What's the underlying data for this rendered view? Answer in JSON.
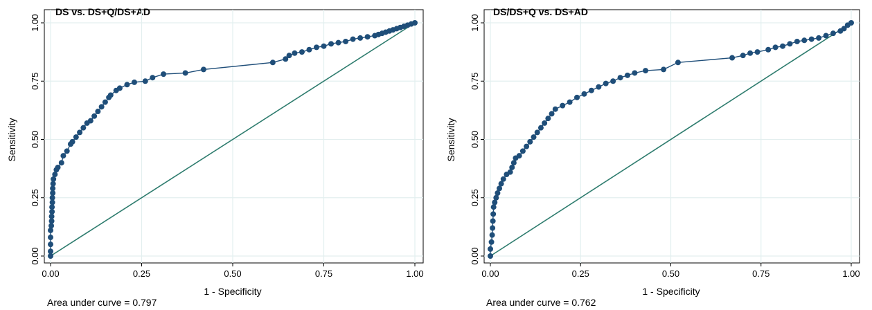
{
  "colors": {
    "marker": "#1f4e79",
    "curve": "#1f4e79",
    "reference": "#2e7c6e",
    "grid": "#e3efef",
    "frame": "#000000"
  },
  "chart_data": [
    {
      "type": "line",
      "title": "DS vs. DS+Q/DS+AD",
      "xlabel": "1 - Specificity",
      "ylabel": "Sensitivity",
      "xlim": [
        0,
        1
      ],
      "ylim": [
        0,
        1
      ],
      "xticks": [
        "0.00",
        "0.25",
        "0.50",
        "0.75",
        "1.00"
      ],
      "yticks": [
        "0.00",
        "0.25",
        "0.50",
        "0.75",
        "1.00"
      ],
      "grid": true,
      "footnote": "Area under curve = 0.797",
      "reference_line": [
        [
          0,
          0
        ],
        [
          1,
          1
        ]
      ],
      "series": [
        {
          "values": [
            [
              0,
              0
            ],
            [
              0,
              0.02
            ],
            [
              0,
              0.05
            ],
            [
              0,
              0.08
            ],
            [
              0,
              0.11
            ],
            [
              0.002,
              0.13
            ],
            [
              0.003,
              0.15
            ],
            [
              0.003,
              0.17
            ],
            [
              0.004,
              0.19
            ],
            [
              0.004,
              0.21
            ],
            [
              0.005,
              0.23
            ],
            [
              0.005,
              0.25
            ],
            [
              0.006,
              0.27
            ],
            [
              0.006,
              0.29
            ],
            [
              0.007,
              0.31
            ],
            [
              0.008,
              0.33
            ],
            [
              0.012,
              0.35
            ],
            [
              0.016,
              0.37
            ],
            [
              0.02,
              0.38
            ],
            [
              0.03,
              0.4
            ],
            [
              0.035,
              0.43
            ],
            [
              0.045,
              0.45
            ],
            [
              0.055,
              0.48
            ],
            [
              0.06,
              0.49
            ],
            [
              0.07,
              0.51
            ],
            [
              0.08,
              0.53
            ],
            [
              0.09,
              0.55
            ],
            [
              0.1,
              0.57
            ],
            [
              0.11,
              0.58
            ],
            [
              0.12,
              0.6
            ],
            [
              0.13,
              0.62
            ],
            [
              0.14,
              0.64
            ],
            [
              0.15,
              0.66
            ],
            [
              0.16,
              0.68
            ],
            [
              0.165,
              0.69
            ],
            [
              0.18,
              0.71
            ],
            [
              0.19,
              0.72
            ],
            [
              0.21,
              0.735
            ],
            [
              0.23,
              0.745
            ],
            [
              0.26,
              0.75
            ],
            [
              0.28,
              0.765
            ],
            [
              0.31,
              0.78
            ],
            [
              0.37,
              0.785
            ],
            [
              0.42,
              0.8
            ],
            [
              0.61,
              0.83
            ],
            [
              0.645,
              0.845
            ],
            [
              0.655,
              0.86
            ],
            [
              0.67,
              0.87
            ],
            [
              0.69,
              0.875
            ],
            [
              0.71,
              0.885
            ],
            [
              0.73,
              0.895
            ],
            [
              0.75,
              0.9
            ],
            [
              0.77,
              0.91
            ],
            [
              0.79,
              0.915
            ],
            [
              0.81,
              0.92
            ],
            [
              0.83,
              0.93
            ],
            [
              0.85,
              0.935
            ],
            [
              0.87,
              0.94
            ],
            [
              0.89,
              0.945
            ],
            [
              0.9,
              0.95
            ],
            [
              0.91,
              0.955
            ],
            [
              0.92,
              0.96
            ],
            [
              0.93,
              0.965
            ],
            [
              0.94,
              0.97
            ],
            [
              0.95,
              0.975
            ],
            [
              0.96,
              0.98
            ],
            [
              0.97,
              0.985
            ],
            [
              0.98,
              0.99
            ],
            [
              0.99,
              0.995
            ],
            [
              1,
              1
            ]
          ]
        }
      ]
    },
    {
      "type": "line",
      "title": "DS/DS+Q vs. DS+AD",
      "xlabel": "1 - Specificity",
      "ylabel": "Sensitivity",
      "xlim": [
        0,
        1
      ],
      "ylim": [
        0,
        1
      ],
      "xticks": [
        "0.00",
        "0.25",
        "0.50",
        "0.75",
        "1.00"
      ],
      "yticks": [
        "0.00",
        "0.25",
        "0.50",
        "0.75",
        "1.00"
      ],
      "grid": true,
      "footnote": "Area under curve = 0.762",
      "reference_line": [
        [
          0,
          0
        ],
        [
          1,
          1
        ]
      ],
      "series": [
        {
          "values": [
            [
              0,
              0
            ],
            [
              0,
              0.03
            ],
            [
              0.003,
              0.06
            ],
            [
              0.005,
              0.09
            ],
            [
              0.006,
              0.12
            ],
            [
              0.007,
              0.15
            ],
            [
              0.008,
              0.18
            ],
            [
              0.009,
              0.21
            ],
            [
              0.012,
              0.23
            ],
            [
              0.016,
              0.25
            ],
            [
              0.02,
              0.27
            ],
            [
              0.025,
              0.29
            ],
            [
              0.03,
              0.31
            ],
            [
              0.036,
              0.33
            ],
            [
              0.045,
              0.35
            ],
            [
              0.055,
              0.36
            ],
            [
              0.06,
              0.38
            ],
            [
              0.065,
              0.4
            ],
            [
              0.07,
              0.42
            ],
            [
              0.08,
              0.43
            ],
            [
              0.09,
              0.45
            ],
            [
              0.1,
              0.47
            ],
            [
              0.11,
              0.49
            ],
            [
              0.12,
              0.51
            ],
            [
              0.13,
              0.53
            ],
            [
              0.14,
              0.55
            ],
            [
              0.15,
              0.57
            ],
            [
              0.16,
              0.59
            ],
            [
              0.17,
              0.61
            ],
            [
              0.18,
              0.63
            ],
            [
              0.2,
              0.645
            ],
            [
              0.22,
              0.66
            ],
            [
              0.24,
              0.68
            ],
            [
              0.26,
              0.695
            ],
            [
              0.28,
              0.71
            ],
            [
              0.3,
              0.725
            ],
            [
              0.32,
              0.74
            ],
            [
              0.34,
              0.75
            ],
            [
              0.36,
              0.765
            ],
            [
              0.38,
              0.775
            ],
            [
              0.4,
              0.785
            ],
            [
              0.43,
              0.795
            ],
            [
              0.48,
              0.8
            ],
            [
              0.52,
              0.83
            ],
            [
              0.67,
              0.85
            ],
            [
              0.7,
              0.86
            ],
            [
              0.72,
              0.87
            ],
            [
              0.74,
              0.875
            ],
            [
              0.77,
              0.885
            ],
            [
              0.79,
              0.895
            ],
            [
              0.81,
              0.9
            ],
            [
              0.83,
              0.91
            ],
            [
              0.85,
              0.92
            ],
            [
              0.87,
              0.925
            ],
            [
              0.89,
              0.93
            ],
            [
              0.91,
              0.935
            ],
            [
              0.93,
              0.945
            ],
            [
              0.95,
              0.955
            ],
            [
              0.97,
              0.965
            ],
            [
              0.98,
              0.975
            ],
            [
              0.99,
              0.99
            ],
            [
              1,
              1
            ]
          ]
        }
      ]
    }
  ]
}
